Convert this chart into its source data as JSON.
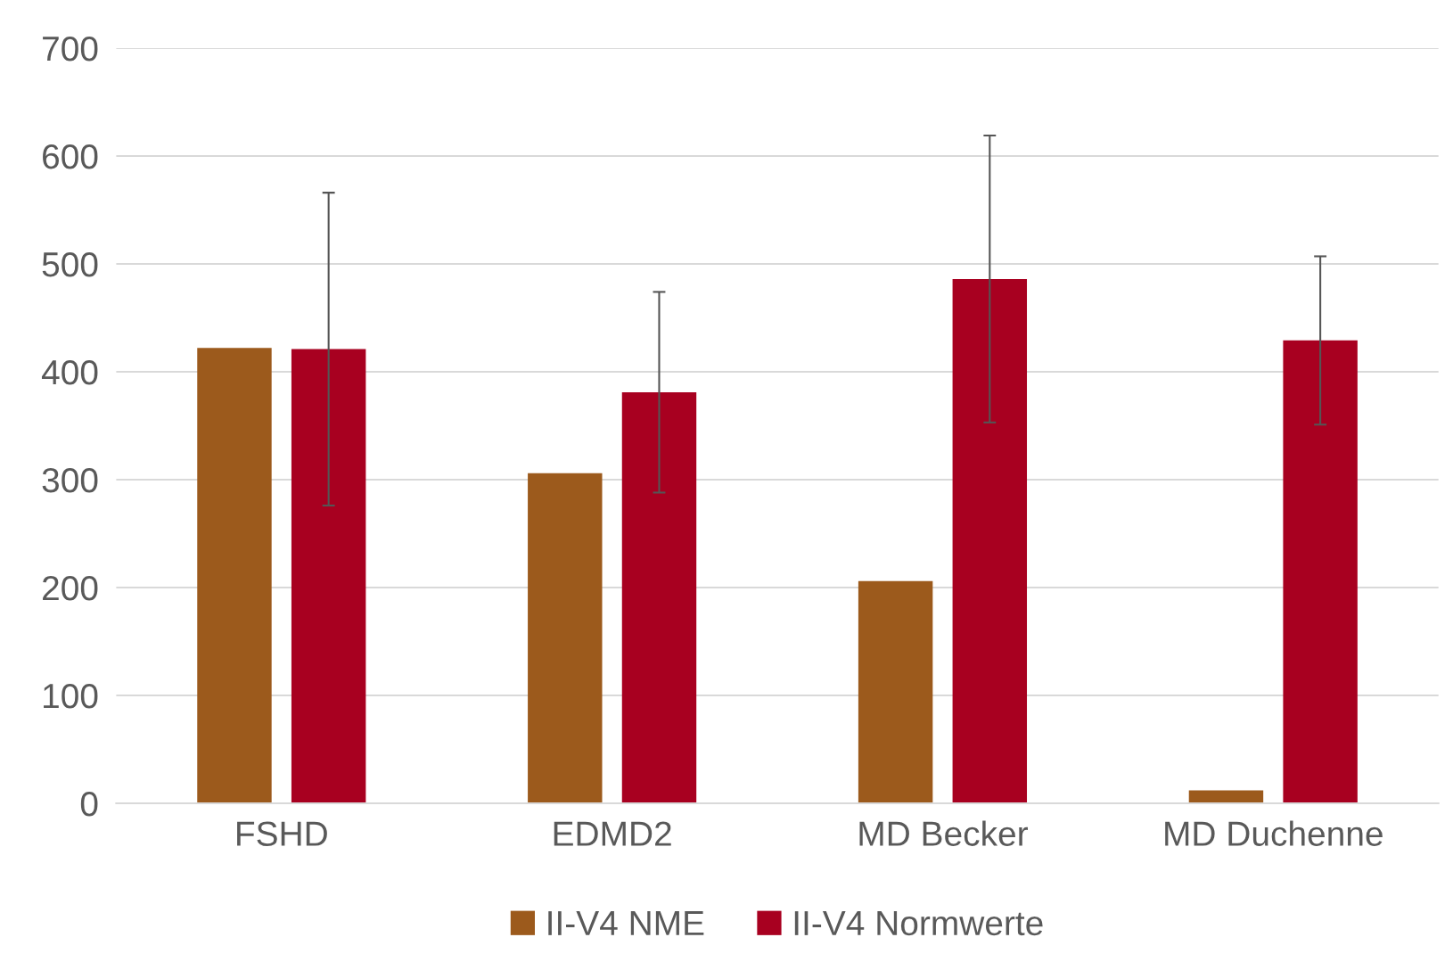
{
  "chart_data": {
    "type": "bar",
    "categories": [
      "FSHD",
      "EDMD2",
      "MD Becker",
      "MD Duchenne"
    ],
    "series": [
      {
        "name": "II-V4 NME",
        "color": "#9c5a1c",
        "values": [
          422,
          306,
          206,
          12
        ]
      },
      {
        "name": "II-V4 Normwerte",
        "color": "#a80020",
        "values": [
          421,
          381,
          486,
          429
        ],
        "errors": [
          145,
          93,
          133,
          78
        ]
      }
    ],
    "ylim": [
      0,
      700
    ],
    "yticks": [
      0,
      100,
      200,
      300,
      400,
      500,
      600,
      700
    ],
    "grid": "y",
    "legend": "bottom"
  }
}
